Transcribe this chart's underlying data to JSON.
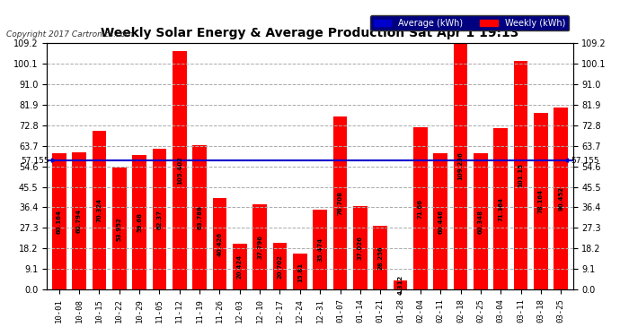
{
  "title": "Weekly Solar Energy & Average Production Sat Apr 1 19:13",
  "copyright": "Copyright 2017 Cartronics.com",
  "categories": [
    "10-01",
    "10-08",
    "10-15",
    "10-22",
    "10-29",
    "11-05",
    "11-12",
    "11-19",
    "11-26",
    "12-03",
    "12-10",
    "12-17",
    "12-24",
    "12-31",
    "01-07",
    "01-14",
    "01-21",
    "01-28",
    "02-04",
    "02-11",
    "02-18",
    "02-25",
    "03-04",
    "03-11",
    "03-18",
    "03-25"
  ],
  "values": [
    60.164,
    60.794,
    70.324,
    53.952,
    59.68,
    62.37,
    105.402,
    63.788,
    40.426,
    20.424,
    37.796,
    20.702,
    15.81,
    35.474,
    76.708,
    37.026,
    28.256,
    4.312,
    71.66,
    60.446,
    109.236,
    60.348,
    71.364,
    101.15,
    78.164,
    80.452
  ],
  "average": 57.155,
  "bar_color": "#ff0000",
  "avg_line_color": "#0000cc",
  "background_color": "#ffffff",
  "grid_color": "#aaaaaa",
  "ylim": [
    0,
    109.2
  ],
  "yticks": [
    0.0,
    9.1,
    18.2,
    27.3,
    36.4,
    45.5,
    54.6,
    63.7,
    72.8,
    81.9,
    91.0,
    100.1,
    109.2
  ],
  "legend_avg_color": "#0000cc",
  "legend_weekly_color": "#ff0000",
  "value_label_color": "#000000",
  "avg_label": "57.155",
  "avg_label_color": "#000000"
}
